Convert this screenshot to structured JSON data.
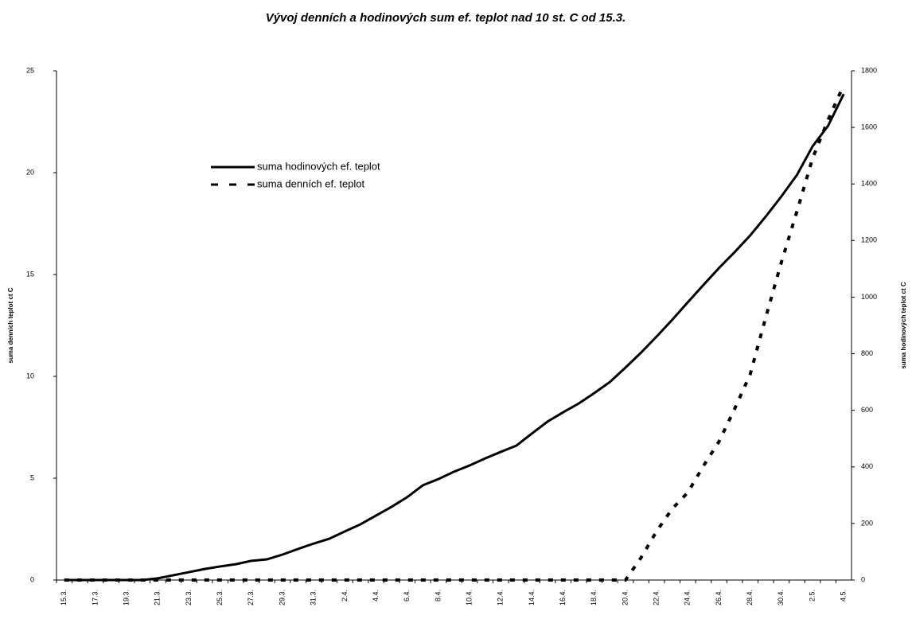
{
  "chart_data": {
    "type": "line",
    "title": "Vývoj denních a hodinových sum ef. teplot nad 10 st. C od 15.3.",
    "y_label": "suma denních teplot ct C",
    "y2_label": "suma hodinových teplot ct C",
    "categories": [
      "15.3.",
      null,
      "17.3.",
      null,
      "19.3.",
      null,
      "21.3.",
      null,
      "23.3.",
      null,
      "25.3.",
      null,
      "27.3.",
      null,
      "29.3.",
      null,
      "31.3.",
      null,
      "2.4.",
      null,
      "4.4.",
      null,
      "6.4.",
      null,
      "8.4.",
      null,
      "10.4.",
      null,
      "12.4.",
      null,
      "14.4.",
      null,
      "16.4.",
      null,
      "18.4.",
      null,
      "20.4.",
      null,
      "22.4.",
      null,
      "24.4.",
      null,
      "26.4.",
      null,
      "28.4.",
      null,
      "30.4.",
      null,
      "2.5.",
      null,
      "4.5."
    ],
    "series": [
      {
        "name": "suma hodinových ef. teplot",
        "color": "#000000",
        "dash": false,
        "axis": "y2",
        "values": [
          0,
          0,
          0,
          0,
          0,
          0,
          6,
          17,
          28,
          39,
          48,
          56,
          68,
          73,
          90,
          110,
          129,
          146,
          172,
          197,
          228,
          259,
          293,
          335,
          357,
          383,
          405,
          430,
          453,
          475,
          518,
          560,
          593,
          624,
          661,
          700,
          751,
          804,
          861,
          920,
          982,
          1043,
          1103,
          1159,
          1218,
          1285,
          1356,
          1432,
          1533,
          1606,
          1718
        ]
      },
      {
        "name": "suma denních ef. teplot",
        "color": "#000000",
        "dash": true,
        "axis": "y",
        "values": [
          0,
          0,
          0,
          0,
          0,
          0,
          0,
          0,
          0,
          0,
          0,
          0,
          0,
          0,
          0,
          0,
          0,
          0,
          0,
          0,
          0,
          0,
          0,
          0,
          0,
          0,
          0,
          0,
          0,
          0,
          0,
          0,
          0,
          0,
          0,
          0,
          0,
          1.1,
          2.4,
          3.5,
          4.3,
          5.6,
          6.8,
          8.4,
          10.1,
          12.9,
          15.6,
          18.1,
          20.7,
          22.6,
          24.3
        ]
      }
    ],
    "ylim": [
      0,
      25
    ],
    "yticks": [
      0,
      5,
      10,
      15,
      20,
      25
    ],
    "y2lim": [
      0,
      1800
    ],
    "y2ticks": [
      0,
      200,
      400,
      600,
      800,
      1000,
      1200,
      1400,
      1600,
      1800
    ],
    "legend": "upper left",
    "grid": false
  }
}
